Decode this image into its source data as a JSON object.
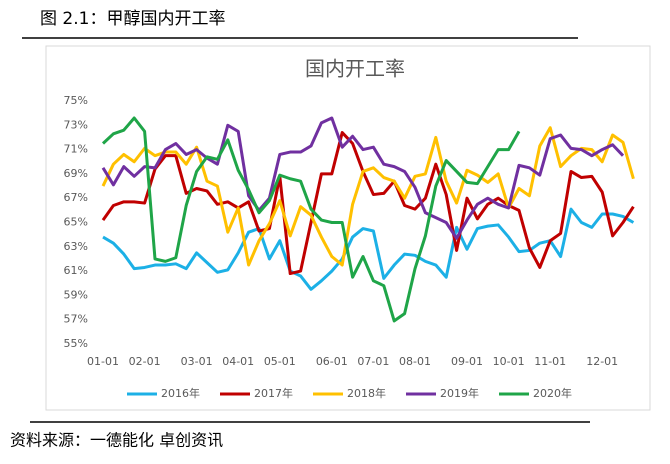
{
  "header": {
    "title": "图 2.1：甲醇国内开工率"
  },
  "source": "资料来源：一德能化 卓创资讯",
  "chart_data": {
    "type": "line",
    "title": "国内开工率",
    "categories": [
      "01-01",
      null,
      null,
      null,
      "02-01",
      null,
      null,
      null,
      null,
      "03-01",
      null,
      null,
      null,
      "04-01",
      null,
      null,
      null,
      "05-01",
      null,
      null,
      null,
      null,
      "06-01",
      null,
      null,
      null,
      "07-01",
      null,
      null,
      null,
      "08-01",
      null,
      null,
      null,
      null,
      "09-01",
      null,
      null,
      null,
      "10-01",
      null,
      null,
      null,
      "11-01",
      null,
      null,
      null,
      null,
      "12-01",
      null,
      null,
      null
    ],
    "ylim": [
      55,
      75
    ],
    "yticks": [
      {
        "value": 55,
        "label": "55%"
      },
      {
        "value": 57,
        "label": "57%"
      },
      {
        "value": 59,
        "label": "59%"
      },
      {
        "value": 61,
        "label": "61%"
      },
      {
        "value": 63,
        "label": "63%"
      },
      {
        "value": 65,
        "label": "65%"
      },
      {
        "value": 67,
        "label": "67%"
      },
      {
        "value": 69,
        "label": "69%"
      },
      {
        "value": 71,
        "label": "71%"
      },
      {
        "value": 73,
        "label": "73%"
      },
      {
        "value": 75,
        "label": "75%"
      }
    ],
    "grid": false,
    "legend": "bottom",
    "series": [
      {
        "name": "2016年",
        "color": "#1cb0e6",
        "values": [
          63.8,
          63.3,
          62.4,
          61.2,
          61.3,
          61.5,
          61.5,
          61.6,
          61.2,
          62.5,
          61.7,
          60.9,
          61.1,
          62.5,
          64.2,
          64.5,
          62.0,
          63.5,
          61.0,
          60.6,
          59.5,
          60.2,
          61.0,
          62.0,
          63.8,
          64.5,
          64.3,
          60.4,
          61.5,
          62.4,
          62.3,
          61.8,
          61.5,
          60.5,
          64.6,
          62.8,
          64.5,
          64.7,
          64.8,
          63.8,
          62.6,
          62.7,
          63.3,
          63.5,
          62.2,
          66.1,
          65.0,
          64.6,
          65.7,
          65.7,
          65.5,
          65.0
        ]
      },
      {
        "name": "2017年",
        "color": "#c00000",
        "values": [
          65.2,
          66.4,
          66.7,
          66.7,
          66.6,
          69.4,
          70.5,
          70.5,
          67.4,
          67.8,
          67.6,
          66.5,
          66.7,
          66.2,
          66.7,
          64.3,
          64.5,
          68.8,
          60.8,
          61.0,
          65.0,
          69.0,
          69.0,
          72.4,
          71.5,
          69.2,
          67.3,
          67.4,
          68.4,
          66.4,
          66.1,
          67.0,
          69.8,
          67.3,
          62.7,
          67.0,
          65.3,
          66.5,
          67.0,
          66.4,
          66.0,
          62.9,
          61.3,
          63.5,
          64.1,
          69.2,
          68.7,
          68.8,
          67.5,
          63.9,
          65.0,
          66.3
        ]
      },
      {
        "name": "2018年",
        "color": "#ffc000",
        "values": [
          68.0,
          69.8,
          70.6,
          70.0,
          71.1,
          70.5,
          70.8,
          70.8,
          69.8,
          71.2,
          68.4,
          68.0,
          64.2,
          66.2,
          61.5,
          63.5,
          64.9,
          66.8,
          63.9,
          66.3,
          65.6,
          63.8,
          62.2,
          61.5,
          66.5,
          69.2,
          69.5,
          68.7,
          68.4,
          67.0,
          68.8,
          69.0,
          72.0,
          68.4,
          66.6,
          69.3,
          68.9,
          68.3,
          69.0,
          66.2,
          67.8,
          67.2,
          71.3,
          72.8,
          69.6,
          70.5,
          71.1,
          71.0,
          70.0,
          72.2,
          71.6,
          68.6
        ]
      },
      {
        "name": "2019年",
        "color": "#7030a0",
        "values": [
          69.5,
          68.1,
          69.6,
          68.8,
          69.6,
          69.5,
          71.0,
          71.5,
          70.6,
          71.0,
          70.3,
          69.8,
          73.0,
          72.5,
          67.2,
          66.0,
          67.0,
          70.6,
          70.8,
          70.8,
          71.3,
          73.2,
          73.6,
          71.2,
          72.1,
          71.0,
          71.2,
          69.8,
          69.6,
          69.2,
          67.9,
          65.8,
          65.4,
          65.0,
          63.7,
          65.2,
          66.5,
          67.0,
          66.5,
          66.2,
          69.7,
          69.5,
          68.9,
          71.9,
          72.2,
          71.1,
          71.0,
          70.5,
          71.0,
          71.4,
          70.5,
          null
        ]
      },
      {
        "name": "2020年",
        "color": "#1fa548",
        "values": [
          71.5,
          72.3,
          72.6,
          73.6,
          72.5,
          62.0,
          61.8,
          62.1,
          66.4,
          69.2,
          70.4,
          70.2,
          71.8,
          69.3,
          67.7,
          65.8,
          66.8,
          68.9,
          68.6,
          68.4,
          66.1,
          65.2,
          65.0,
          65.0,
          60.5,
          62.2,
          60.2,
          59.8,
          56.9,
          57.5,
          61.2,
          63.9,
          68.0,
          70.1,
          69.2,
          68.3,
          68.2,
          69.6,
          71.0,
          71.0,
          72.5,
          null,
          null,
          null,
          null,
          null,
          null,
          null,
          null,
          null,
          null,
          null
        ]
      }
    ]
  }
}
